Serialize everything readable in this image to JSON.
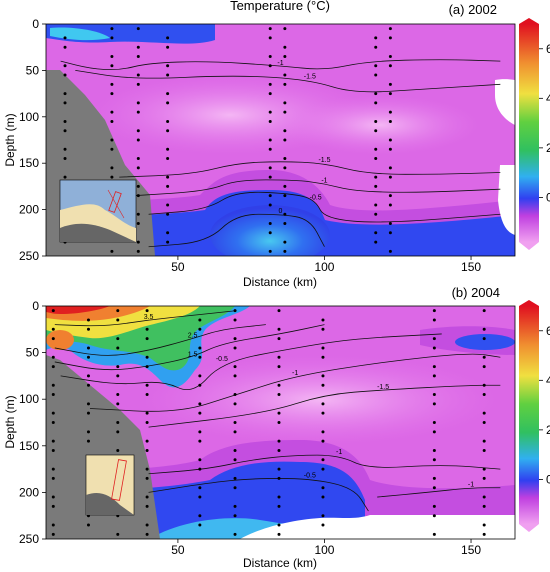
{
  "figure_title": "Temperature (°C)",
  "chart_data": [
    {
      "type": "heatmap",
      "panel_label": "(a) 2002",
      "xlabel": "Distance (km)",
      "ylabel": "Depth (m)",
      "xlim": [
        5,
        165
      ],
      "ylim": [
        250,
        0
      ],
      "xticks": [
        50,
        100,
        150
      ],
      "yticks": [
        0,
        50,
        100,
        150,
        200,
        250
      ],
      "colorbar": {
        "ticks": [
          6,
          4,
          2,
          0
        ],
        "range": [
          -1.8,
          7
        ],
        "colors": [
          "#e080e8",
          "#3a5ff0",
          "#40c0e0",
          "#40d040",
          "#f0e040",
          "#f08030",
          "#e02020"
        ]
      },
      "contours": [
        {
          "level": -1,
          "label": "-1",
          "points": [
            [
              10,
              40
            ],
            [
              20,
              48
            ],
            [
              30,
              50
            ],
            [
              40,
              42
            ],
            [
              60,
              40
            ],
            [
              85,
              45
            ],
            [
              100,
              50
            ],
            [
              115,
              40
            ],
            [
              140,
              38
            ],
            [
              160,
              40
            ]
          ]
        },
        {
          "level": -1.5,
          "label": "-1.5",
          "points": [
            [
              15,
              50
            ],
            [
              35,
              60
            ],
            [
              70,
              55
            ],
            [
              95,
              60
            ],
            [
              110,
              75
            ],
            [
              135,
              70
            ],
            [
              160,
              65
            ]
          ]
        },
        {
          "level": -1.5,
          "label": "-1.5",
          "points": [
            [
              30,
              165
            ],
            [
              55,
              162
            ],
            [
              70,
              150
            ],
            [
              85,
              148
            ],
            [
              100,
              150
            ],
            [
              115,
              162
            ],
            [
              140,
              162
            ],
            [
              160,
              160
            ]
          ]
        },
        {
          "level": -1,
          "label": "-1",
          "points": [
            [
              35,
              185
            ],
            [
              60,
              180
            ],
            [
              70,
              168
            ],
            [
              90,
              168
            ],
            [
              100,
              172
            ],
            [
              110,
              180
            ],
            [
              130,
              182
            ],
            [
              160,
              178
            ]
          ]
        },
        {
          "level": -0.5,
          "label": "-0.5",
          "points": [
            [
              40,
              205
            ],
            [
              60,
              200
            ],
            [
              70,
              180
            ],
            [
              90,
              183
            ],
            [
              97,
              190
            ],
            [
              100,
              210
            ],
            [
              120,
              215
            ],
            [
              160,
              205
            ]
          ]
        },
        {
          "level": 0,
          "label": "0",
          "points": [
            [
              40,
              240
            ],
            [
              60,
              235
            ],
            [
              70,
              205
            ],
            [
              85,
              205
            ],
            [
              95,
              210
            ],
            [
              100,
              240
            ]
          ]
        }
      ],
      "stations_km": [
        5,
        12,
        28,
        37,
        47,
        82,
        87,
        118,
        123
      ]
    },
    {
      "type": "heatmap",
      "panel_label": "(b) 2004",
      "xlabel": "Distance (km)",
      "ylabel": "Depth (m)",
      "xlim": [
        5,
        165
      ],
      "ylim": [
        250,
        0
      ],
      "xticks": [
        50,
        100,
        150
      ],
      "yticks": [
        0,
        50,
        100,
        150,
        200,
        250
      ],
      "colorbar": {
        "ticks": [
          6,
          4,
          2,
          0
        ],
        "range": [
          -1.8,
          7
        ],
        "colors": [
          "#e080e8",
          "#3a5ff0",
          "#40c0e0",
          "#40d040",
          "#f0e040",
          "#f08030",
          "#e02020"
        ]
      },
      "contours": [
        {
          "level": 3.5,
          "label": "3.5",
          "points": [
            [
              8,
              20
            ],
            [
              25,
              22
            ],
            [
              40,
              15
            ],
            [
              55,
              10
            ],
            [
              70,
              5
            ]
          ]
        },
        {
          "level": 2.5,
          "label": "2.5",
          "points": [
            [
              8,
              45
            ],
            [
              25,
              55
            ],
            [
              40,
              48
            ],
            [
              55,
              35
            ],
            [
              65,
              25
            ],
            [
              80,
              20
            ]
          ]
        },
        {
          "level": 1.5,
          "label": "1.5",
          "points": [
            [
              8,
              60
            ],
            [
              25,
              70
            ],
            [
              40,
              65
            ],
            [
              55,
              55
            ],
            [
              65,
              40
            ],
            [
              85,
              30
            ],
            [
              100,
              20
            ]
          ]
        },
        {
          "level": -0.5,
          "label": "-0.5",
          "points": [
            [
              10,
              75
            ],
            [
              30,
              85
            ],
            [
              45,
              80
            ],
            [
              55,
              95
            ],
            [
              65,
              60
            ],
            [
              90,
              45
            ],
            [
              110,
              35
            ],
            [
              140,
              30
            ]
          ]
        },
        {
          "level": -1,
          "label": "-1",
          "points": [
            [
              20,
              110
            ],
            [
              50,
              115
            ],
            [
              70,
              95
            ],
            [
              90,
              75
            ],
            [
              120,
              60
            ],
            [
              150,
              50
            ],
            [
              160,
              55
            ]
          ]
        },
        {
          "level": -1.5,
          "label": "-1.5",
          "points": [
            [
              40,
              130
            ],
            [
              80,
              115
            ],
            [
              100,
              95
            ],
            [
              120,
              90
            ],
            [
              150,
              85
            ],
            [
              160,
              85
            ]
          ]
        },
        {
          "level": -1,
          "label": "-1",
          "points": [
            [
              40,
              180
            ],
            [
              60,
              175
            ],
            [
              75,
              165
            ],
            [
              90,
              160
            ],
            [
              105,
              160
            ],
            [
              115,
              175
            ],
            [
              140,
              170
            ],
            [
              160,
              175
            ]
          ]
        },
        {
          "level": -0.5,
          "label": "-0.5",
          "points": [
            [
              40,
              200
            ],
            [
              60,
              190
            ],
            [
              75,
              185
            ],
            [
              95,
              185
            ],
            [
              110,
              195
            ],
            [
              115,
              220
            ]
          ]
        },
        {
          "level": -1,
          "label": "-1",
          "points": [
            [
              118,
              205
            ],
            [
              135,
              200
            ],
            [
              150,
              195
            ],
            [
              160,
              195
            ]
          ]
        }
      ],
      "stations_km": [
        8,
        20,
        30,
        40,
        58,
        70,
        85,
        100,
        138,
        155
      ]
    }
  ]
}
